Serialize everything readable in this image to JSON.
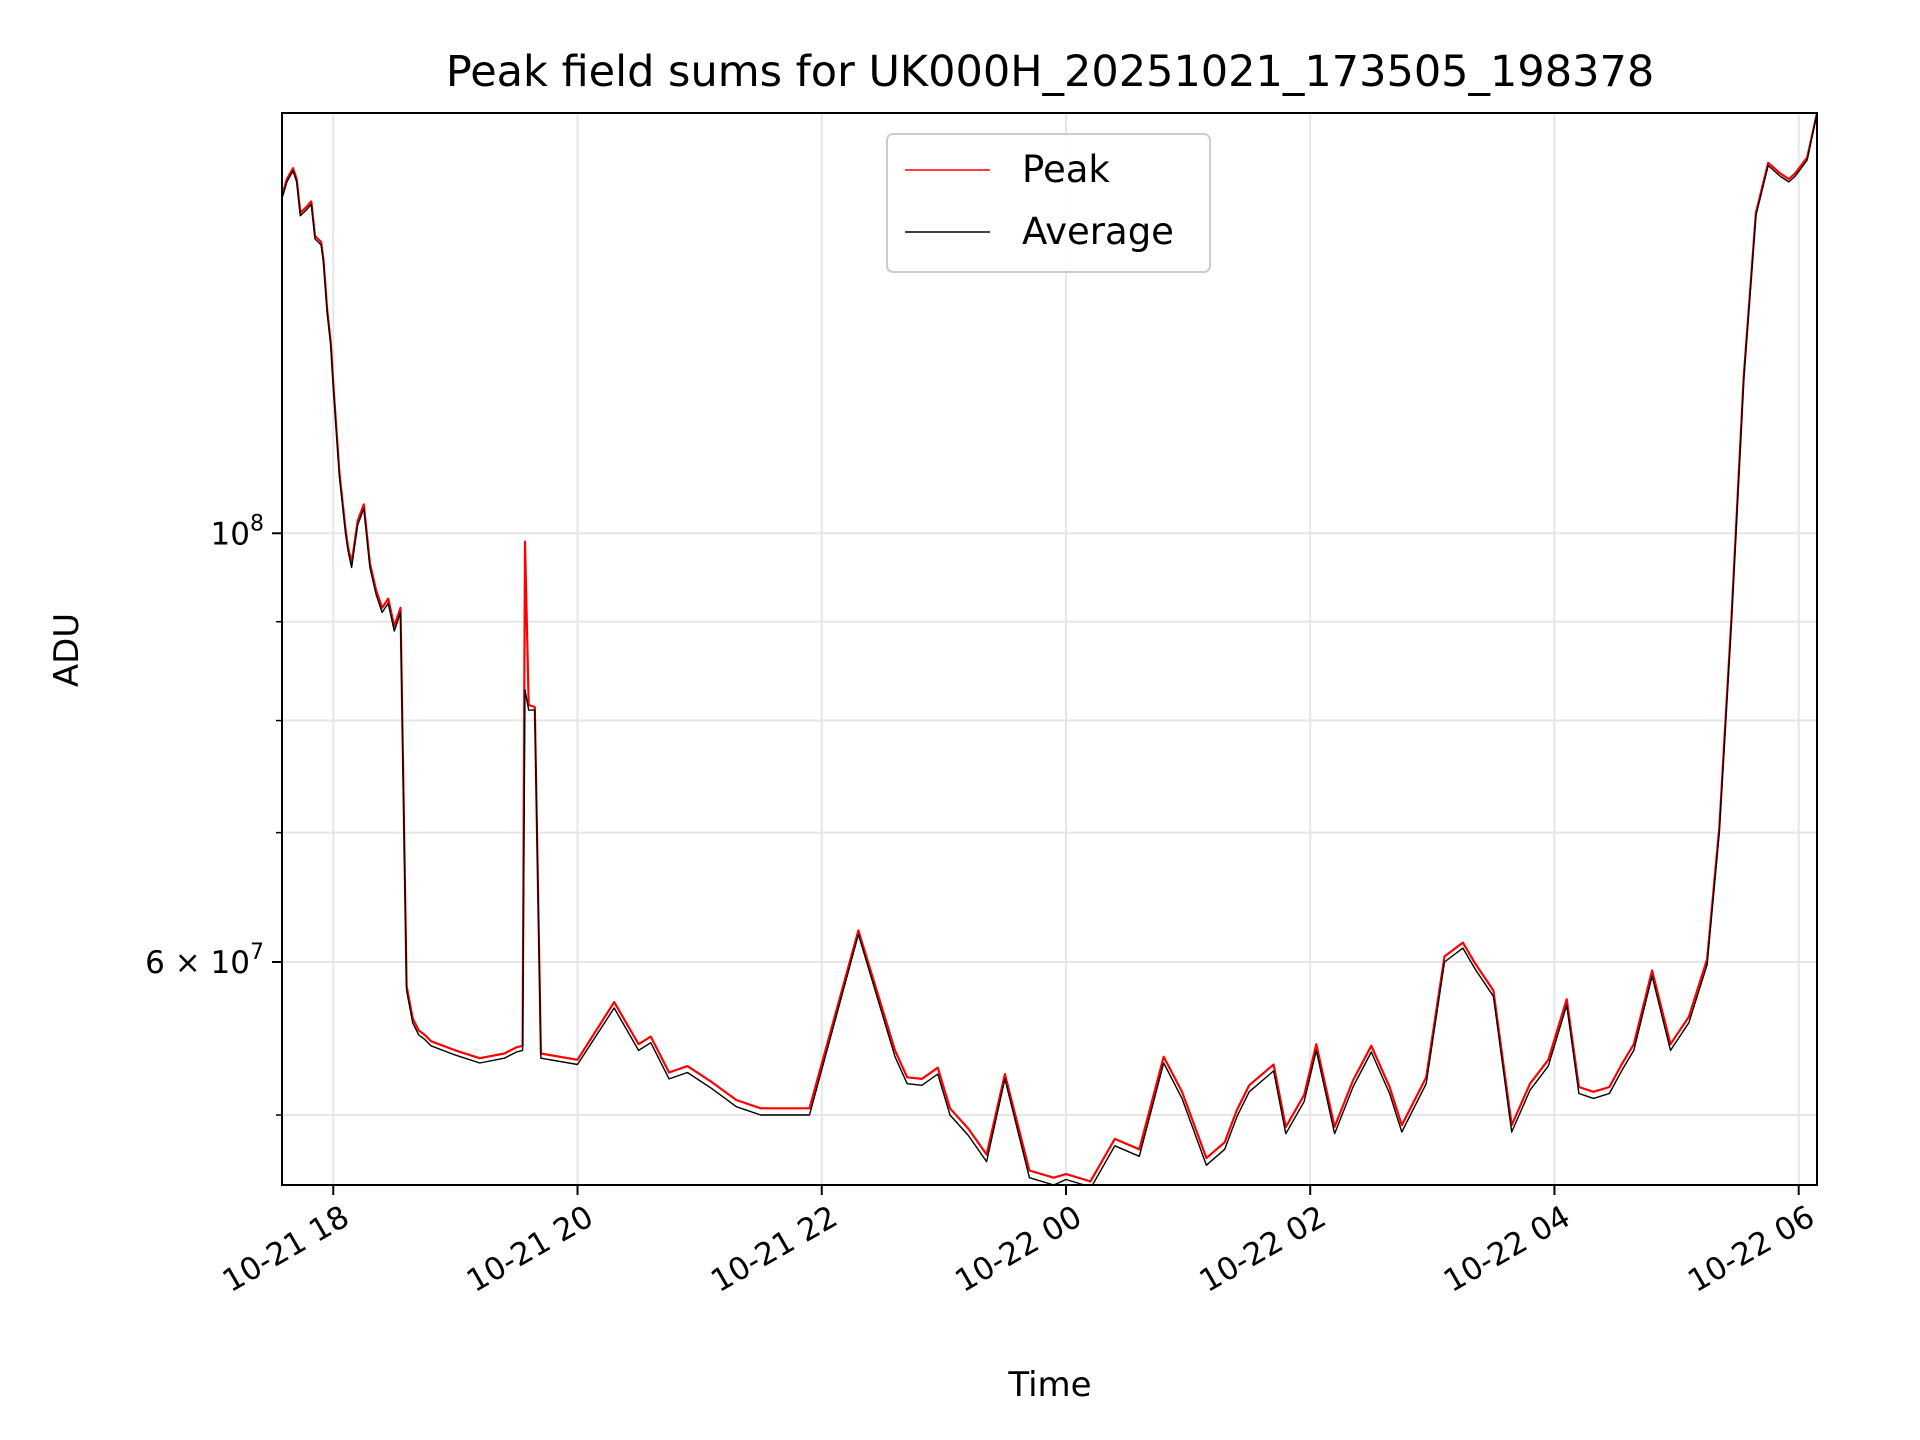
{
  "chart_data": {
    "type": "line",
    "title": "Peak field sums for UK000H_20251021_173505_198378",
    "xlabel": "Time",
    "ylabel": "ADU",
    "yscale": "log",
    "grid": true,
    "legend_position": "top-center",
    "xlim": [
      -0.42,
      12.15
    ],
    "ylim": [
      46000000,
      165000000
    ],
    "x_unit": "hours since 2025-10-21 18:00",
    "x_ticks": [
      {
        "value": 0,
        "label": "10-21 18"
      },
      {
        "value": 2,
        "label": "10-21 20"
      },
      {
        "value": 4,
        "label": "10-21 22"
      },
      {
        "value": 6,
        "label": "10-22 00"
      },
      {
        "value": 8,
        "label": "10-22 02"
      },
      {
        "value": 10,
        "label": "10-22 04"
      },
      {
        "value": 12,
        "label": "10-22 06"
      }
    ],
    "y_ticks_labeled": [
      {
        "value": 100000000,
        "base": "10",
        "exp": "8",
        "mant": ""
      },
      {
        "value": 60000000,
        "base": "10",
        "exp": "7",
        "mant": "6 × "
      }
    ],
    "y_minor_ticks": [
      50000000,
      70000000,
      80000000,
      90000000
    ],
    "series": [
      {
        "name": "Average",
        "color": "#000000",
        "x": [
          -0.42,
          -0.38,
          -0.33,
          -0.3,
          -0.27,
          -0.22,
          -0.18,
          -0.15,
          -0.1,
          -0.08,
          -0.05,
          -0.02,
          0.0,
          0.05,
          0.1,
          0.12,
          0.15,
          0.2,
          0.25,
          0.3,
          0.35,
          0.4,
          0.45,
          0.5,
          0.55,
          0.6,
          0.65,
          0.7,
          0.75,
          0.8,
          1.0,
          1.2,
          1.4,
          1.5,
          1.55,
          1.57,
          1.6,
          1.65,
          1.7,
          2.0,
          2.3,
          2.5,
          2.6,
          2.75,
          2.9,
          3.1,
          3.3,
          3.5,
          3.9,
          4.3,
          4.6,
          4.7,
          4.82,
          4.95,
          5.05,
          5.2,
          5.35,
          5.5,
          5.7,
          5.9,
          6.0,
          6.15,
          6.2,
          6.4,
          6.6,
          6.8,
          6.95,
          7.15,
          7.3,
          7.4,
          7.5,
          7.7,
          7.8,
          7.95,
          8.05,
          8.2,
          8.35,
          8.5,
          8.65,
          8.75,
          8.95,
          9.1,
          9.25,
          9.35,
          9.5,
          9.65,
          9.8,
          9.95,
          10.1,
          10.2,
          10.32,
          10.45,
          10.55,
          10.65,
          10.8,
          10.95,
          11.1,
          11.25,
          11.35,
          11.45,
          11.55,
          11.65,
          11.75,
          11.85,
          11.92,
          11.97,
          12.07,
          12.15
        ],
        "values": [
          149000000,
          152000000,
          154000000,
          152000000,
          146000000,
          147000000,
          148000000,
          142000000,
          141000000,
          138000000,
          130000000,
          125000000,
          119000000,
          107000000,
          100000000,
          98000000,
          96000000,
          101000000,
          103000000,
          96000000,
          93000000,
          91000000,
          92000000,
          89000000,
          91000000,
          58000000,
          55800000,
          55000000,
          54700000,
          54300000,
          53700000,
          53200000,
          53500000,
          53900000,
          54000000,
          83000000,
          81000000,
          81000000,
          53500000,
          53100000,
          56800000,
          54000000,
          54500000,
          52200000,
          52600000,
          51600000,
          50500000,
          50000000,
          50000000,
          62000000,
          53600000,
          51900000,
          51800000,
          52500000,
          50000000,
          48800000,
          47300000,
          52200000,
          46400000,
          46000000,
          46300000,
          46000000,
          45800000,
          48200000,
          47600000,
          53200000,
          51000000,
          47100000,
          48000000,
          49900000,
          51400000,
          52700000,
          48900000,
          50800000,
          54000000,
          48900000,
          51700000,
          53900000,
          51300000,
          49000000,
          51900000,
          60000000,
          61000000,
          59500000,
          57600000,
          49000000,
          51500000,
          53000000,
          57000000,
          51300000,
          51000000,
          51300000,
          52700000,
          54000000,
          59000000,
          54000000,
          55800000,
          59800000,
          70000000,
          90000000,
          120000000,
          146000000,
          155000000,
          153000000,
          152000000,
          153000000,
          156000000,
          165000000
        ]
      },
      {
        "name": "Peak",
        "color": "#ff0000",
        "x": [
          -0.42,
          -0.38,
          -0.33,
          -0.3,
          -0.27,
          -0.22,
          -0.18,
          -0.15,
          -0.1,
          -0.08,
          -0.05,
          -0.02,
          0.0,
          0.05,
          0.1,
          0.12,
          0.15,
          0.2,
          0.25,
          0.3,
          0.35,
          0.4,
          0.45,
          0.5,
          0.55,
          0.6,
          0.65,
          0.7,
          0.75,
          0.8,
          1.0,
          1.2,
          1.4,
          1.5,
          1.55,
          1.57,
          1.6,
          1.65,
          1.7,
          2.0,
          2.3,
          2.5,
          2.6,
          2.75,
          2.9,
          3.1,
          3.3,
          3.5,
          3.9,
          4.3,
          4.6,
          4.7,
          4.82,
          4.95,
          5.05,
          5.2,
          5.35,
          5.5,
          5.7,
          5.9,
          6.0,
          6.15,
          6.2,
          6.4,
          6.6,
          6.8,
          6.95,
          7.15,
          7.3,
          7.4,
          7.5,
          7.7,
          7.8,
          7.95,
          8.05,
          8.2,
          8.35,
          8.5,
          8.65,
          8.75,
          8.95,
          9.1,
          9.25,
          9.35,
          9.5,
          9.65,
          9.8,
          9.95,
          10.1,
          10.2,
          10.32,
          10.45,
          10.55,
          10.65,
          10.8,
          10.95,
          11.1,
          11.25,
          11.35,
          11.45,
          11.55,
          11.65,
          11.75,
          11.85,
          11.92,
          11.97,
          12.07,
          12.15
        ],
        "values": [
          149500000,
          152500000,
          154500000,
          152500000,
          146500000,
          147500000,
          148500000,
          142500000,
          141500000,
          138500000,
          130500000,
          125500000,
          119500000,
          107500000,
          100500000,
          98500000,
          96500000,
          101500000,
          103500000,
          96500000,
          93500000,
          91500000,
          92500000,
          89500000,
          91500000,
          58300000,
          56100000,
          55300000,
          55000000,
          54600000,
          54000000,
          53500000,
          53800000,
          54200000,
          54300000,
          99000000,
          81500000,
          81300000,
          53800000,
          53400000,
          57200000,
          54400000,
          54900000,
          52600000,
          53000000,
          52000000,
          50900000,
          50400000,
          50400000,
          62300000,
          54000000,
          52300000,
          52200000,
          52900000,
          50400000,
          49200000,
          47700000,
          52500000,
          46800000,
          46400000,
          46600000,
          46300000,
          46200000,
          48600000,
          48000000,
          53600000,
          51400000,
          47500000,
          48400000,
          50300000,
          51800000,
          53100000,
          49300000,
          51200000,
          54400000,
          49300000,
          52100000,
          54300000,
          51700000,
          49400000,
          52300000,
          60400000,
          61400000,
          59900000,
          58000000,
          49400000,
          51900000,
          53400000,
          57400000,
          51700000,
          51400000,
          51700000,
          53100000,
          54400000,
          59400000,
          54400000,
          56200000,
          60200000,
          70400000,
          90500000,
          120500000,
          146500000,
          155500000,
          153500000,
          152500000,
          153500000,
          156500000,
          165000000
        ]
      }
    ]
  }
}
